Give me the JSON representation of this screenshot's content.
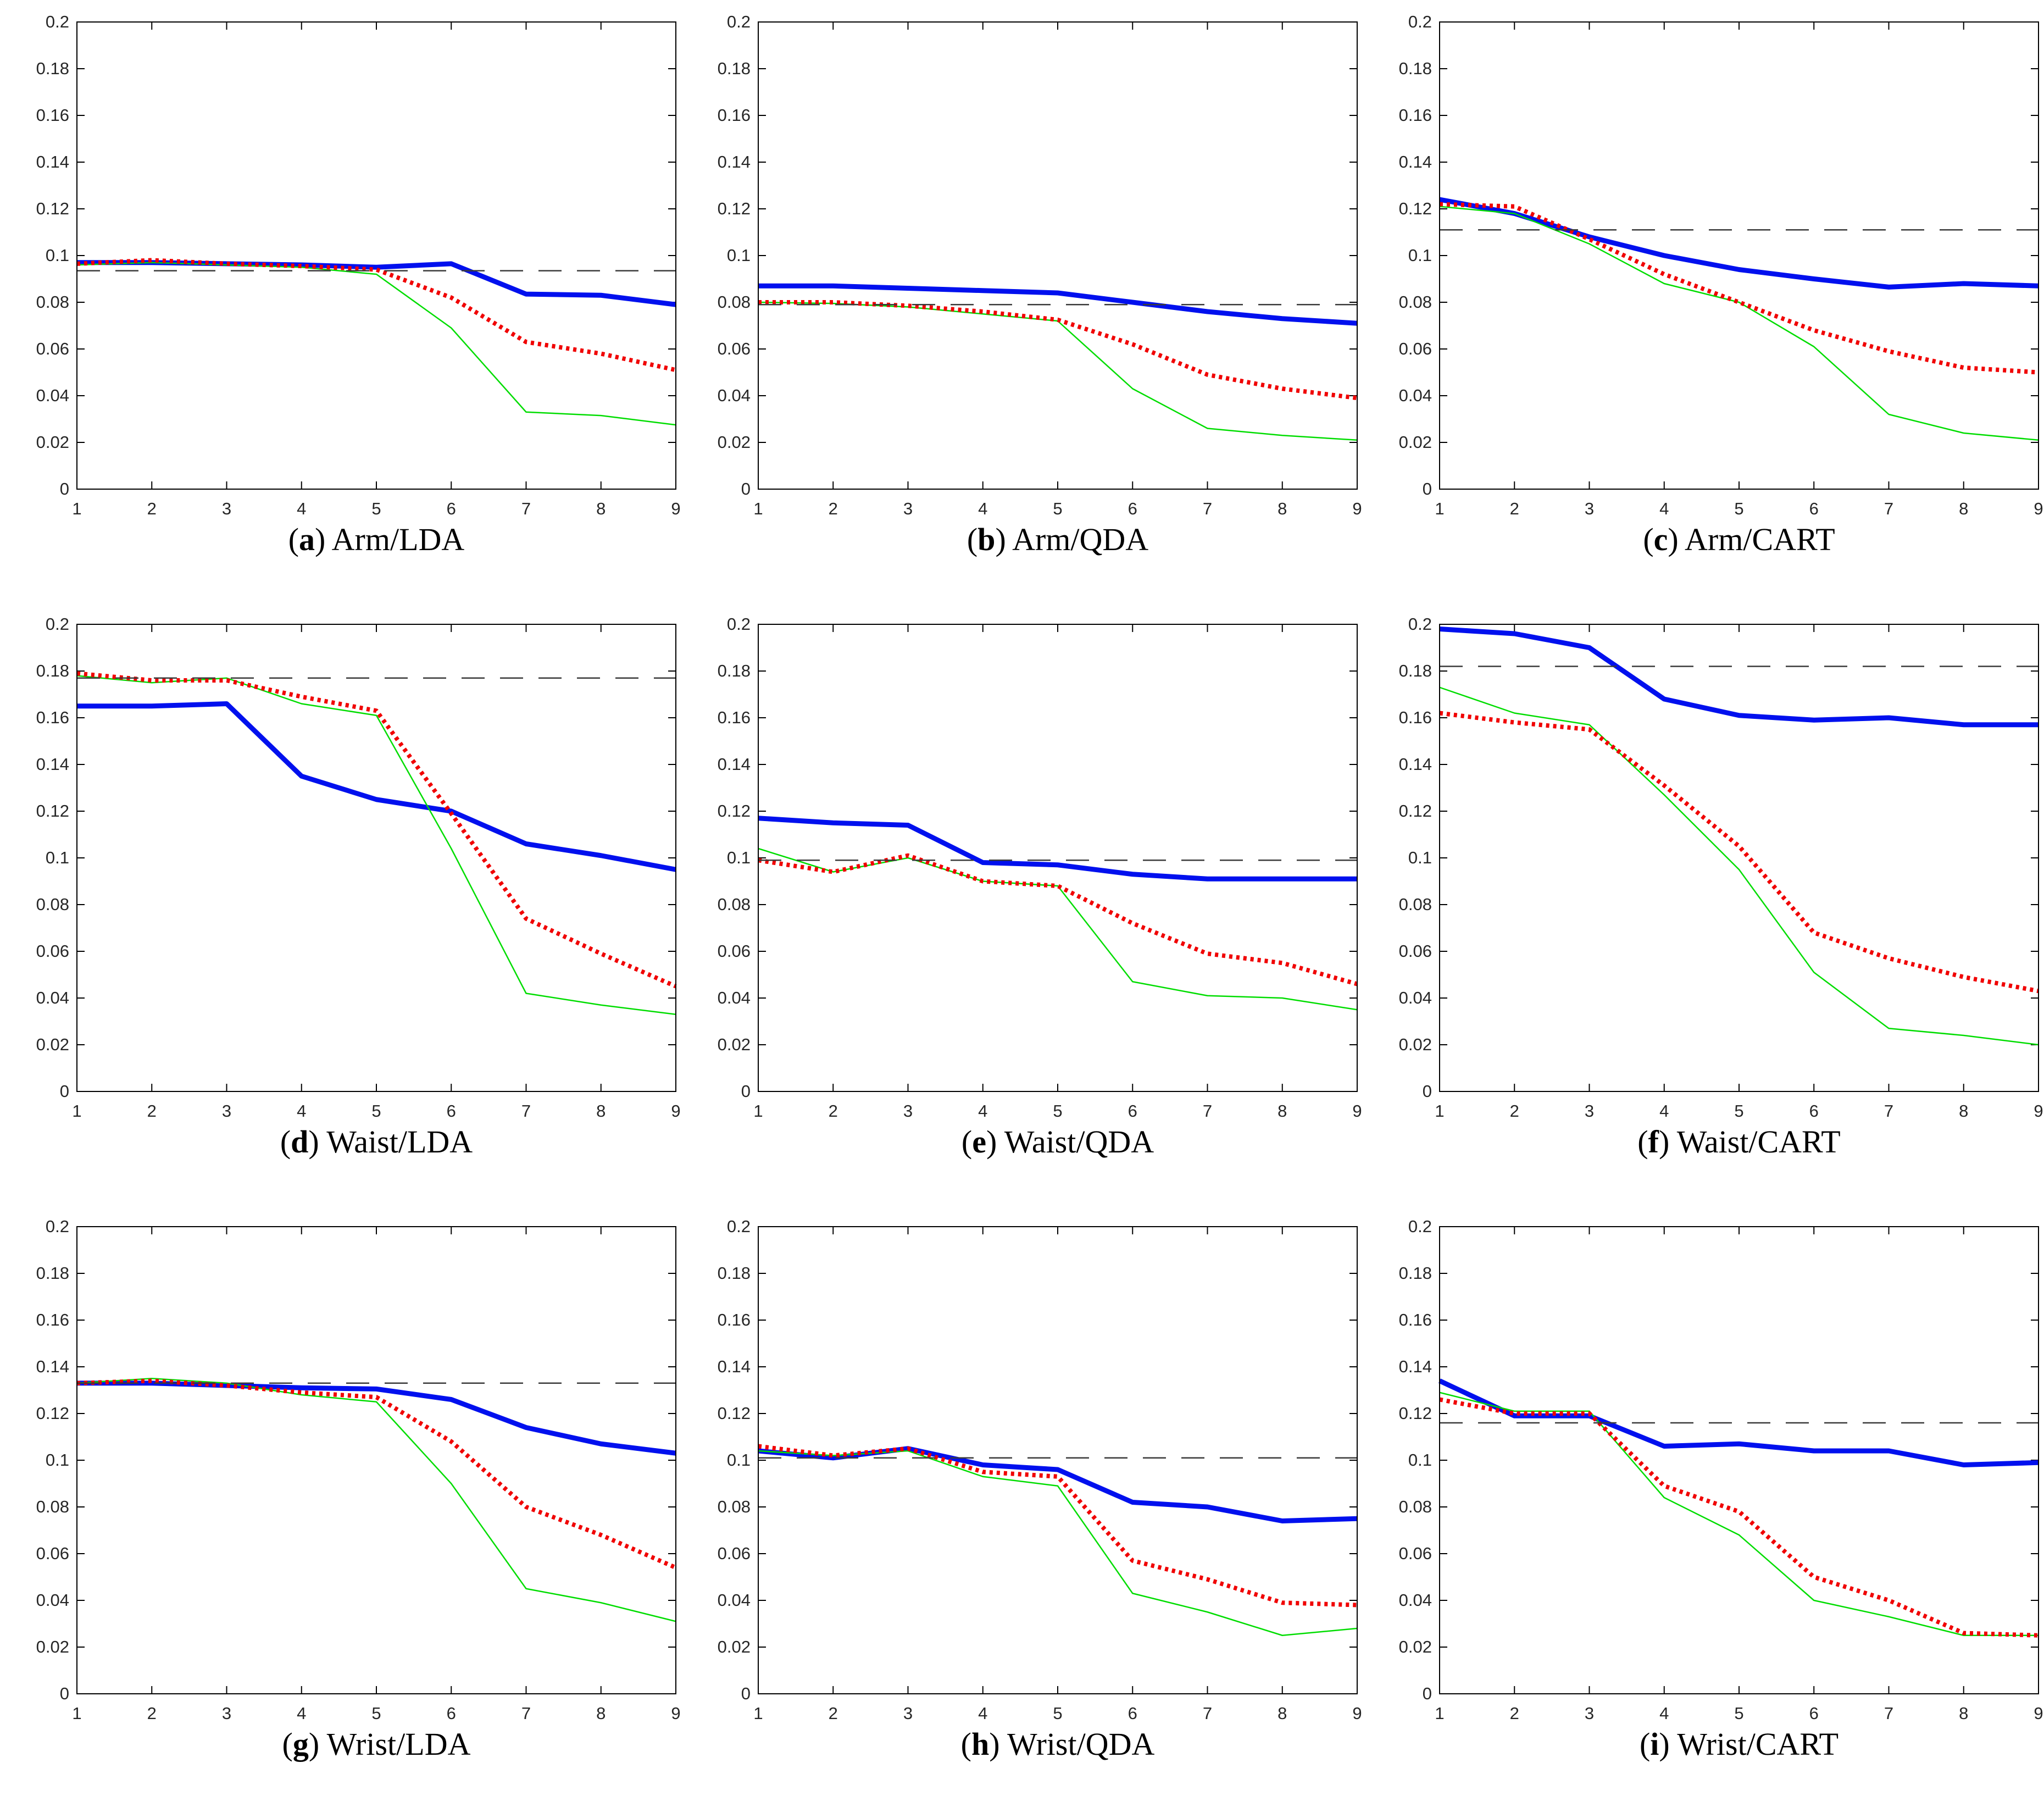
{
  "ui": {
    "caption_open": "(",
    "caption_close": ") "
  },
  "colors": {
    "blue": "#0010ee",
    "red": "#f00000",
    "green": "#00dd00",
    "baseline": "#3a3a3a",
    "axis": "#000000",
    "tick_text": "#262626"
  },
  "axes": {
    "x_range": [
      1,
      9
    ],
    "y_range": [
      0,
      0.2
    ],
    "x_tick_labels": [
      "1",
      "2",
      "3",
      "4",
      "5",
      "6",
      "7",
      "8",
      "9"
    ],
    "x_tick_values": [
      1,
      2,
      3,
      4,
      5,
      6,
      7,
      8,
      9
    ],
    "y_tick_labels": [
      "0",
      "0.02",
      "0.04",
      "0.06",
      "0.08",
      "0.1",
      "0.12",
      "0.14",
      "0.16",
      "0.18",
      "0.2"
    ],
    "y_tick_values": [
      0,
      0.02,
      0.04,
      0.06,
      0.08,
      0.1,
      0.12,
      0.14,
      0.16,
      0.18,
      0.2
    ],
    "grid": false,
    "legend": "none",
    "box": true
  },
  "chart_data": [
    {
      "type": "line",
      "caption": {
        "letter": "a",
        "name": "Arm/LDA"
      },
      "x": [
        1,
        2,
        3,
        4,
        5,
        6,
        7,
        8,
        9
      ],
      "baseline": 0.0935,
      "series": [
        {
          "name": "thick-blue-solid",
          "style": "blue",
          "values": [
            0.097,
            0.097,
            0.0965,
            0.096,
            0.095,
            0.0965,
            0.0835,
            0.083,
            0.079
          ]
        },
        {
          "name": "thin-green-solid",
          "style": "green",
          "values": [
            0.096,
            0.097,
            0.096,
            0.095,
            0.092,
            0.069,
            0.033,
            0.0315,
            0.0275
          ]
        },
        {
          "name": "red-dotted",
          "style": "red",
          "values": [
            0.0965,
            0.098,
            0.0965,
            0.0955,
            0.094,
            0.082,
            0.063,
            0.058,
            0.051
          ]
        }
      ]
    },
    {
      "type": "line",
      "caption": {
        "letter": "b",
        "name": "Arm/QDA"
      },
      "x": [
        1,
        2,
        3,
        4,
        5,
        6,
        7,
        8,
        9
      ],
      "baseline": 0.079,
      "series": [
        {
          "name": "thick-blue-solid",
          "style": "blue",
          "values": [
            0.087,
            0.087,
            0.086,
            0.085,
            0.084,
            0.08,
            0.076,
            0.073,
            0.071
          ]
        },
        {
          "name": "thin-green-solid",
          "style": "green",
          "values": [
            0.08,
            0.0795,
            0.078,
            0.075,
            0.072,
            0.043,
            0.026,
            0.023,
            0.021
          ]
        },
        {
          "name": "red-dotted",
          "style": "red",
          "values": [
            0.08,
            0.08,
            0.0785,
            0.076,
            0.0725,
            0.062,
            0.049,
            0.043,
            0.039
          ]
        }
      ]
    },
    {
      "type": "line",
      "caption": {
        "letter": "c",
        "name": "Arm/CART"
      },
      "x": [
        1,
        2,
        3,
        4,
        5,
        6,
        7,
        8,
        9
      ],
      "baseline": 0.111,
      "series": [
        {
          "name": "thick-blue-solid",
          "style": "blue",
          "values": [
            0.124,
            0.118,
            0.108,
            0.1,
            0.094,
            0.09,
            0.0865,
            0.088,
            0.087
          ]
        },
        {
          "name": "thin-green-solid",
          "style": "green",
          "values": [
            0.121,
            0.118,
            0.105,
            0.088,
            0.08,
            0.061,
            0.032,
            0.024,
            0.021
          ]
        },
        {
          "name": "red-dotted",
          "style": "red",
          "values": [
            0.122,
            0.121,
            0.107,
            0.092,
            0.08,
            0.068,
            0.059,
            0.052,
            0.05
          ]
        }
      ]
    },
    {
      "type": "line",
      "caption": {
        "letter": "d",
        "name": "Waist/LDA"
      },
      "x": [
        1,
        2,
        3,
        4,
        5,
        6,
        7,
        8,
        9
      ],
      "baseline": 0.177,
      "series": [
        {
          "name": "thick-blue-solid",
          "style": "blue",
          "values": [
            0.165,
            0.165,
            0.166,
            0.135,
            0.125,
            0.12,
            0.106,
            0.101,
            0.095
          ]
        },
        {
          "name": "thin-green-solid",
          "style": "green",
          "values": [
            0.178,
            0.175,
            0.177,
            0.166,
            0.161,
            0.104,
            0.042,
            0.037,
            0.033
          ]
        },
        {
          "name": "red-dotted",
          "style": "red",
          "values": [
            0.179,
            0.176,
            0.176,
            0.169,
            0.163,
            0.119,
            0.074,
            0.059,
            0.045
          ]
        }
      ]
    },
    {
      "type": "line",
      "caption": {
        "letter": "e",
        "name": "Waist/QDA"
      },
      "x": [
        1,
        2,
        3,
        4,
        5,
        6,
        7,
        8,
        9
      ],
      "baseline": 0.099,
      "series": [
        {
          "name": "thick-blue-solid",
          "style": "blue",
          "values": [
            0.117,
            0.115,
            0.114,
            0.098,
            0.097,
            0.093,
            0.091,
            0.091,
            0.091
          ]
        },
        {
          "name": "thin-green-solid",
          "style": "green",
          "values": [
            0.104,
            0.094,
            0.1,
            0.09,
            0.088,
            0.047,
            0.041,
            0.04,
            0.035
          ]
        },
        {
          "name": "red-dotted",
          "style": "red",
          "values": [
            0.099,
            0.094,
            0.101,
            0.09,
            0.088,
            0.072,
            0.059,
            0.055,
            0.046
          ]
        }
      ]
    },
    {
      "type": "line",
      "caption": {
        "letter": "f",
        "name": "Waist/CART"
      },
      "x": [
        1,
        2,
        3,
        4,
        5,
        6,
        7,
        8,
        9
      ],
      "baseline": 0.182,
      "series": [
        {
          "name": "thick-blue-solid",
          "style": "blue",
          "values": [
            0.198,
            0.196,
            0.19,
            0.168,
            0.161,
            0.159,
            0.16,
            0.157,
            0.157
          ]
        },
        {
          "name": "thin-green-solid",
          "style": "green",
          "values": [
            0.173,
            0.162,
            0.157,
            0.127,
            0.095,
            0.051,
            0.027,
            0.024,
            0.02
          ]
        },
        {
          "name": "red-dotted",
          "style": "red",
          "values": [
            0.162,
            0.158,
            0.155,
            0.131,
            0.105,
            0.068,
            0.057,
            0.049,
            0.043
          ]
        }
      ]
    },
    {
      "type": "line",
      "caption": {
        "letter": "g",
        "name": "Wrist/LDA"
      },
      "x": [
        1,
        2,
        3,
        4,
        5,
        6,
        7,
        8,
        9
      ],
      "baseline": 0.133,
      "series": [
        {
          "name": "thick-blue-solid",
          "style": "blue",
          "values": [
            0.133,
            0.133,
            0.132,
            0.131,
            0.1305,
            0.126,
            0.114,
            0.107,
            0.103
          ]
        },
        {
          "name": "thin-green-solid",
          "style": "green",
          "values": [
            0.133,
            0.135,
            0.133,
            0.128,
            0.125,
            0.09,
            0.045,
            0.039,
            0.031
          ]
        },
        {
          "name": "red-dotted",
          "style": "red",
          "values": [
            0.133,
            0.134,
            0.132,
            0.129,
            0.127,
            0.108,
            0.08,
            0.068,
            0.054
          ]
        }
      ]
    },
    {
      "type": "line",
      "caption": {
        "letter": "h",
        "name": "Wrist/QDA"
      },
      "x": [
        1,
        2,
        3,
        4,
        5,
        6,
        7,
        8,
        9
      ],
      "baseline": 0.101,
      "series": [
        {
          "name": "thick-blue-solid",
          "style": "blue",
          "values": [
            0.104,
            0.101,
            0.105,
            0.098,
            0.096,
            0.082,
            0.08,
            0.074,
            0.075
          ]
        },
        {
          "name": "thin-green-solid",
          "style": "green",
          "values": [
            0.104,
            0.102,
            0.104,
            0.093,
            0.089,
            0.043,
            0.035,
            0.025,
            0.028
          ]
        },
        {
          "name": "red-dotted",
          "style": "red",
          "values": [
            0.106,
            0.102,
            0.105,
            0.095,
            0.093,
            0.057,
            0.049,
            0.039,
            0.038
          ]
        }
      ]
    },
    {
      "type": "line",
      "caption": {
        "letter": "i",
        "name": "Wrist/CART"
      },
      "x": [
        1,
        2,
        3,
        4,
        5,
        6,
        7,
        8,
        9
      ],
      "baseline": 0.116,
      "series": [
        {
          "name": "thick-blue-solid",
          "style": "blue",
          "values": [
            0.134,
            0.119,
            0.119,
            0.106,
            0.107,
            0.104,
            0.104,
            0.098,
            0.099
          ]
        },
        {
          "name": "thin-green-solid",
          "style": "green",
          "values": [
            0.129,
            0.121,
            0.121,
            0.084,
            0.068,
            0.04,
            0.033,
            0.025,
            0.025
          ]
        },
        {
          "name": "red-dotted",
          "style": "red",
          "values": [
            0.126,
            0.12,
            0.12,
            0.089,
            0.078,
            0.05,
            0.04,
            0.026,
            0.025
          ]
        }
      ]
    }
  ]
}
